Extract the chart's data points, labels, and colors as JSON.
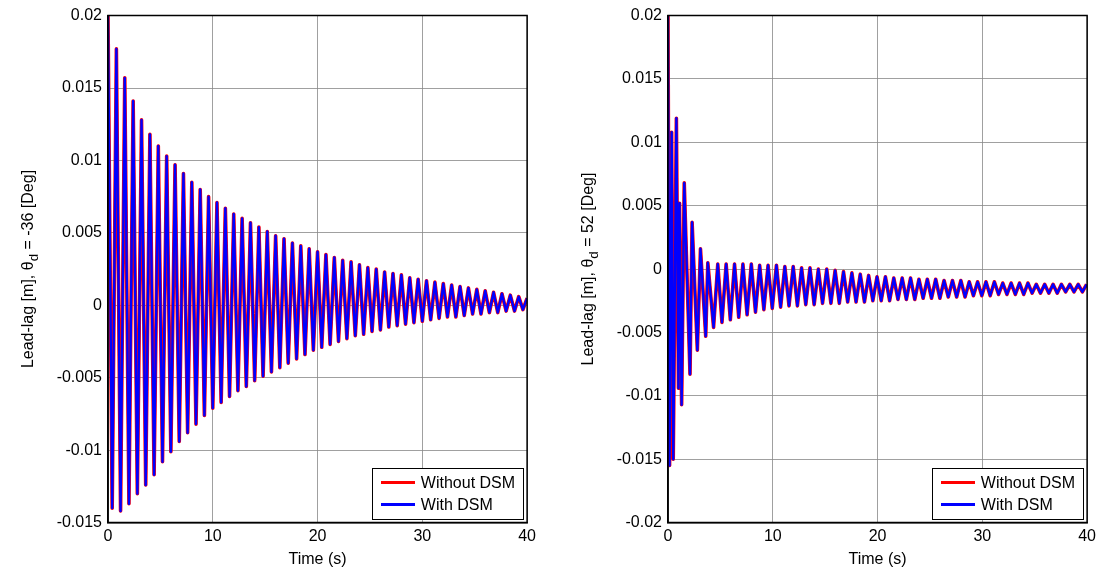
{
  "chart_data": [
    {
      "type": "line",
      "xlabel": "Time (s)",
      "ylabel": "Lead-lag [m], θ$_{d}$ = -36 [Deg]",
      "xlim": [
        0,
        40
      ],
      "xticks": [
        0,
        10,
        20,
        30,
        40
      ],
      "ylim": [
        -0.015,
        0.02
      ],
      "yticks": [
        -0.015,
        -0.01,
        -0.005,
        0,
        0.005,
        0.01,
        0.015,
        0.02
      ],
      "grid": true,
      "legend": "bottom right",
      "x": [
        0,
        0.4,
        0.8,
        1.2,
        1.6,
        2,
        2.4,
        2.8,
        3.2,
        3.6,
        4,
        4.4,
        4.8,
        5.2,
        5.6,
        6,
        6.4,
        6.8,
        7.2,
        7.6,
        8,
        8.4,
        8.8,
        9.2,
        9.6,
        10,
        10.4,
        10.8,
        11.2,
        11.6,
        12,
        12.4,
        12.8,
        13.2,
        13.6,
        14,
        14.4,
        14.8,
        15.2,
        15.6,
        16,
        16.4,
        16.8,
        17.2,
        17.6,
        18,
        18.4,
        18.8,
        19.2,
        19.6,
        20,
        20.4,
        20.8,
        21.2,
        21.6,
        22,
        22.4,
        22.8,
        23.2,
        23.6,
        24,
        24.4,
        24.8,
        25.2,
        25.6,
        26,
        26.4,
        26.8,
        27.2,
        27.6,
        28,
        28.4,
        28.8,
        29.2,
        29.6,
        30,
        30.4,
        30.8,
        31.2,
        31.6,
        32,
        32.4,
        32.8,
        33.2,
        33.6,
        34,
        34.4,
        34.8,
        35.2,
        35.6,
        36,
        36.4,
        36.8,
        37.2,
        37.6,
        38,
        38.4,
        38.8,
        39.2,
        39.6,
        40
      ],
      "series": [
        {
          "name": "Without DSM",
          "color": "#ff0000",
          "values": [
            0.02,
            -0.014,
            0.0177,
            -0.0142,
            0.0157,
            -0.0137,
            0.0141,
            -0.013,
            0.0128,
            -0.0124,
            0.0118,
            -0.0117,
            0.011,
            -0.0108,
            0.0103,
            -0.0101,
            0.0097,
            -0.0094,
            0.0091,
            -0.0088,
            0.0085,
            -0.0082,
            0.008,
            -0.0076,
            0.0075,
            -0.0071,
            0.0071,
            -0.0067,
            0.0067,
            -0.0063,
            0.0063,
            -0.0059,
            0.006,
            -0.0056,
            0.0057,
            -0.0052,
            0.0054,
            -0.0049,
            0.0051,
            -0.0046,
            0.0048,
            -0.0043,
            0.0046,
            -0.004,
            0.0043,
            -0.0037,
            0.0041,
            -0.0034,
            0.0039,
            -0.0031,
            0.0037,
            -0.0029,
            0.0035,
            -0.0027,
            0.0033,
            -0.0025,
            0.0031,
            -0.0023,
            0.003,
            -0.0021,
            0.0028,
            -0.002,
            0.0026,
            -0.0018,
            0.0025,
            -0.0017,
            0.0023,
            -0.0015,
            0.0022,
            -0.0014,
            0.0021,
            -0.0013,
            0.0019,
            -0.0012,
            0.0018,
            -0.0011,
            0.0017,
            -0.001,
            0.0016,
            -0.0009,
            0.0015,
            -0.0008,
            0.0014,
            -0.0008,
            0.0013,
            -0.0007,
            0.0012,
            -0.0006,
            0.0011,
            -0.0006,
            0.001,
            -0.0005,
            0.0009,
            -0.0005,
            0.0008,
            -0.0004,
            0.0007,
            -0.0004,
            0.0006,
            -0.0003,
            0.0005
          ]
        },
        {
          "name": "With DSM",
          "color": "#0000ff",
          "values": [
            0.02,
            -0.014,
            0.0177,
            -0.0142,
            0.0157,
            -0.0137,
            0.0141,
            -0.013,
            0.0128,
            -0.0124,
            0.0118,
            -0.0117,
            0.011,
            -0.0108,
            0.0103,
            -0.0101,
            0.0097,
            -0.0094,
            0.0091,
            -0.0088,
            0.0085,
            -0.0082,
            0.008,
            -0.0076,
            0.0075,
            -0.0071,
            0.0071,
            -0.0067,
            0.0067,
            -0.0063,
            0.0063,
            -0.0059,
            0.006,
            -0.0056,
            0.0057,
            -0.0052,
            0.0054,
            -0.0049,
            0.0051,
            -0.0046,
            0.0048,
            -0.0043,
            0.0046,
            -0.004,
            0.0043,
            -0.0037,
            0.0041,
            -0.0034,
            0.0039,
            -0.0031,
            0.0037,
            -0.0029,
            0.0035,
            -0.0027,
            0.0033,
            -0.0025,
            0.0031,
            -0.0023,
            0.003,
            -0.0021,
            0.0028,
            -0.002,
            0.0026,
            -0.0018,
            0.0025,
            -0.0017,
            0.0023,
            -0.0015,
            0.0022,
            -0.0014,
            0.0021,
            -0.0013,
            0.0019,
            -0.0012,
            0.0018,
            -0.0011,
            0.0017,
            -0.001,
            0.0016,
            -0.0009,
            0.0015,
            -0.0008,
            0.0014,
            -0.0008,
            0.0013,
            -0.0007,
            0.0012,
            -0.0006,
            0.0011,
            -0.0006,
            0.001,
            -0.0005,
            0.0009,
            -0.0005,
            0.0008,
            -0.0004,
            0.0007,
            -0.0004,
            0.0006,
            -0.0003,
            0.0005
          ]
        }
      ]
    },
    {
      "type": "line",
      "xlabel": "Time (s)",
      "ylabel": "Lead-lag [m], θ$_{d}$ = 52 [Deg]",
      "xlim": [
        0,
        40
      ],
      "xticks": [
        0,
        10,
        20,
        30,
        40
      ],
      "ylim": [
        -0.02,
        0.02
      ],
      "yticks": [
        -0.02,
        -0.015,
        -0.01,
        -0.005,
        0,
        0.005,
        0.01,
        0.015,
        0.02
      ],
      "grid": true,
      "legend": "bottom right",
      "x": [
        0,
        0.15,
        0.35,
        0.5,
        0.8,
        1,
        1.1,
        1.3,
        1.55,
        2.1,
        2.3,
        2.8,
        3.1,
        3.6,
        3.8,
        4.35,
        4.75,
        5.15,
        5.55,
        5.95,
        6.35,
        6.75,
        7.15,
        7.55,
        7.95,
        8.35,
        8.75,
        9.15,
        9.55,
        9.95,
        10.35,
        10.75,
        11.15,
        11.55,
        11.95,
        12.35,
        12.75,
        13.15,
        13.55,
        13.95,
        14.35,
        14.75,
        15.15,
        15.55,
        15.95,
        16.35,
        16.75,
        17.15,
        17.55,
        17.95,
        18.35,
        18.75,
        19.15,
        19.55,
        19.95,
        20.35,
        20.75,
        21.15,
        21.55,
        21.95,
        22.35,
        22.75,
        23.15,
        23.55,
        23.95,
        24.35,
        24.75,
        25.15,
        25.55,
        25.95,
        26.35,
        26.75,
        27.15,
        27.55,
        27.95,
        28.35,
        28.75,
        29.15,
        29.55,
        29.95,
        30.35,
        30.75,
        31.15,
        31.55,
        31.95,
        32.35,
        32.75,
        33.15,
        33.55,
        33.95,
        34.35,
        34.75,
        35.15,
        35.55,
        35.95,
        36.35,
        36.75,
        37.15,
        37.55,
        37.95,
        38.35,
        38.75,
        39.15,
        39.55,
        39.95
      ],
      "series": [
        {
          "name": "Without DSM",
          "color": "#ff0000",
          "values": [
            0.02,
            -0.0155,
            0.0108,
            -0.015,
            0.0119,
            -0.0094,
            0.0052,
            -0.0107,
            0.0068,
            -0.0083,
            0.0037,
            -0.0064,
            0.0016,
            -0.0053,
            0.0005,
            -0.0046,
            0.0004,
            -0.0042,
            0.0004,
            -0.004,
            0.0004,
            -0.0038,
            0.0004,
            -0.0036,
            0.0004,
            -0.0034,
            0.0003,
            -0.0032,
            0.0003,
            -0.0031,
            0.0003,
            -0.003,
            0.0002,
            -0.0029,
            0.0002,
            -0.0029,
            0.0001,
            -0.0028,
            0.0001,
            -0.0028,
            0,
            -0.0027,
            0,
            -0.0027,
            -0.0001,
            -0.0027,
            -0.0002,
            -0.0026,
            -0.0003,
            -0.0026,
            -0.0004,
            -0.0026,
            -0.0005,
            -0.0025,
            -0.0006,
            -0.0025,
            -0.0006,
            -0.0025,
            -0.0007,
            -0.0024,
            -0.0007,
            -0.0024,
            -0.0007,
            -0.0024,
            -0.0008,
            -0.0023,
            -0.0008,
            -0.0023,
            -0.0008,
            -0.0023,
            -0.0009,
            -0.0022,
            -0.0009,
            -0.0022,
            -0.0009,
            -0.0022,
            -0.001,
            -0.0021,
            -0.001,
            -0.0021,
            -0.001,
            -0.0021,
            -0.001,
            -0.002,
            -0.0011,
            -0.002,
            -0.0011,
            -0.002,
            -0.0011,
            -0.002,
            -0.0011,
            -0.0019,
            -0.0012,
            -0.0019,
            -0.0012,
            -0.0019,
            -0.0012,
            -0.0019,
            -0.0012,
            -0.0018,
            -0.0012,
            -0.0018,
            -0.0012,
            -0.0018,
            -0.0012
          ]
        },
        {
          "name": "With DSM",
          "color": "#0000ff",
          "values": [
            0.02,
            -0.0155,
            0.0108,
            -0.015,
            0.0119,
            -0.0094,
            0.0052,
            -0.0107,
            0.0068,
            -0.0083,
            0.0037,
            -0.0064,
            0.0016,
            -0.0053,
            0.0005,
            -0.0046,
            0.0004,
            -0.0042,
            0.0004,
            -0.004,
            0.0004,
            -0.0038,
            0.0004,
            -0.0036,
            0.0004,
            -0.0034,
            0.0003,
            -0.0032,
            0.0003,
            -0.0031,
            0.0003,
            -0.003,
            0.0002,
            -0.0029,
            0.0002,
            -0.0029,
            0.0001,
            -0.0028,
            0.0001,
            -0.0028,
            0,
            -0.0027,
            0,
            -0.0027,
            -0.0001,
            -0.0027,
            -0.0002,
            -0.0026,
            -0.0003,
            -0.0026,
            -0.0004,
            -0.0026,
            -0.0005,
            -0.0025,
            -0.0006,
            -0.0025,
            -0.0006,
            -0.0025,
            -0.0007,
            -0.0024,
            -0.0007,
            -0.0024,
            -0.0007,
            -0.0024,
            -0.0008,
            -0.0023,
            -0.0008,
            -0.0023,
            -0.0008,
            -0.0023,
            -0.0009,
            -0.0022,
            -0.0009,
            -0.0022,
            -0.0009,
            -0.0022,
            -0.001,
            -0.0021,
            -0.001,
            -0.0021,
            -0.001,
            -0.0021,
            -0.001,
            -0.002,
            -0.0011,
            -0.002,
            -0.0011,
            -0.002,
            -0.0011,
            -0.002,
            -0.0011,
            -0.0019,
            -0.0012,
            -0.0019,
            -0.0012,
            -0.0019,
            -0.0012,
            -0.0019,
            -0.0012,
            -0.0018,
            -0.0012,
            -0.0018,
            -0.0012,
            -0.0018,
            -0.0012
          ]
        }
      ]
    }
  ]
}
